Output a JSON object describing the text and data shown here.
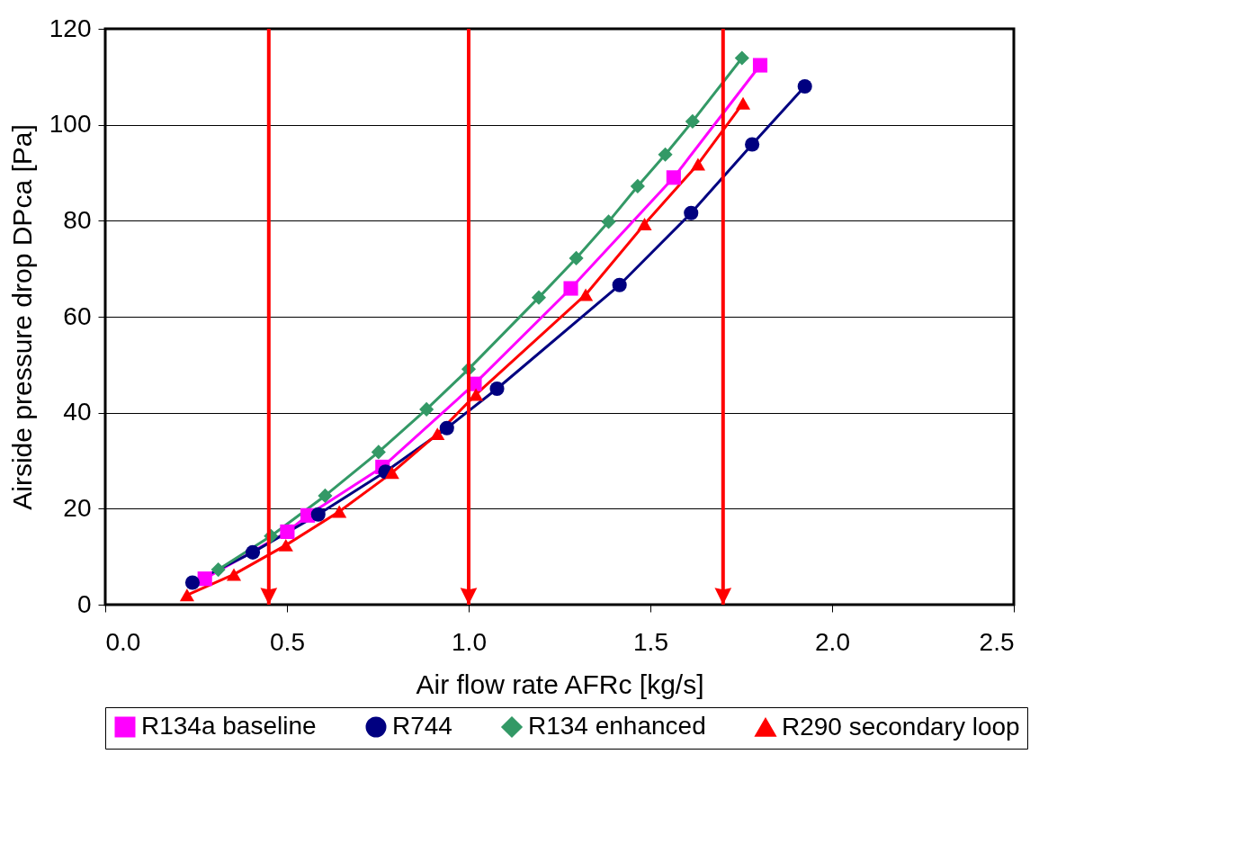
{
  "chart_data": {
    "type": "line",
    "xlabel": "Air flow rate AFRc [kg/s]",
    "ylabel": "Airside pressure drop DPca [Pa]",
    "xlim": [
      0,
      2.5
    ],
    "xticks": [
      {
        "value": 0,
        "label": "0.0"
      },
      {
        "value": 0.5,
        "label": "0.5"
      },
      {
        "value": 1,
        "label": "1.0"
      },
      {
        "value": 1.5,
        "label": "1.5"
      },
      {
        "value": 2,
        "label": "2.0"
      },
      {
        "value": 2.5,
        "label": "2.5"
      }
    ],
    "ylim": [
      0,
      120
    ],
    "yticks": [
      0,
      20,
      40,
      60,
      80,
      100,
      120
    ],
    "grid": "y",
    "legend": "bottom",
    "series": [
      {
        "name": "R134a baseline",
        "color": "#ff00ff",
        "marker": "square",
        "x": [
          0.274,
          0.501,
          0.557,
          0.763,
          1.016,
          1.281,
          1.564,
          1.802
        ],
        "values": [
          5.4,
          15.2,
          18.6,
          28.7,
          46.0,
          65.9,
          89.0,
          112.4
        ]
      },
      {
        "name": "R744",
        "color": "#000080",
        "marker": "circle",
        "x": [
          0.24,
          0.406,
          0.586,
          0.771,
          0.94,
          1.078,
          1.415,
          1.612,
          1.78,
          1.925
        ],
        "values": [
          4.6,
          10.9,
          18.8,
          27.7,
          36.8,
          45.0,
          66.6,
          81.6,
          95.9,
          108.0
        ]
      },
      {
        "name": "R134 enhanced",
        "color": "#339966",
        "marker": "diamond",
        "x": [
          0.311,
          0.456,
          0.605,
          0.752,
          0.884,
          1.0,
          1.193,
          1.296,
          1.385,
          1.465,
          1.541,
          1.616,
          1.752
        ],
        "values": [
          7.3,
          14.3,
          22.7,
          31.8,
          40.7,
          49.1,
          64.0,
          72.2,
          79.8,
          87.2,
          93.8,
          100.7,
          113.9
        ]
      },
      {
        "name": "R290 secondary loop",
        "color": "#ff0000",
        "marker": "triangle",
        "x": [
          0.225,
          0.354,
          0.497,
          0.644,
          0.789,
          0.914,
          1.02,
          1.322,
          1.484,
          1.631,
          1.755
        ],
        "values": [
          2.0,
          6.3,
          12.4,
          19.4,
          27.5,
          35.6,
          43.8,
          64.6,
          79.3,
          91.8,
          104.5
        ]
      }
    ],
    "ref_lines": [
      {
        "axis": "x",
        "value": 0.45,
        "color": "#ff0000"
      },
      {
        "axis": "x",
        "value": 1.0,
        "color": "#ff0000"
      },
      {
        "axis": "x",
        "value": 1.7,
        "color": "#ff0000"
      }
    ]
  }
}
